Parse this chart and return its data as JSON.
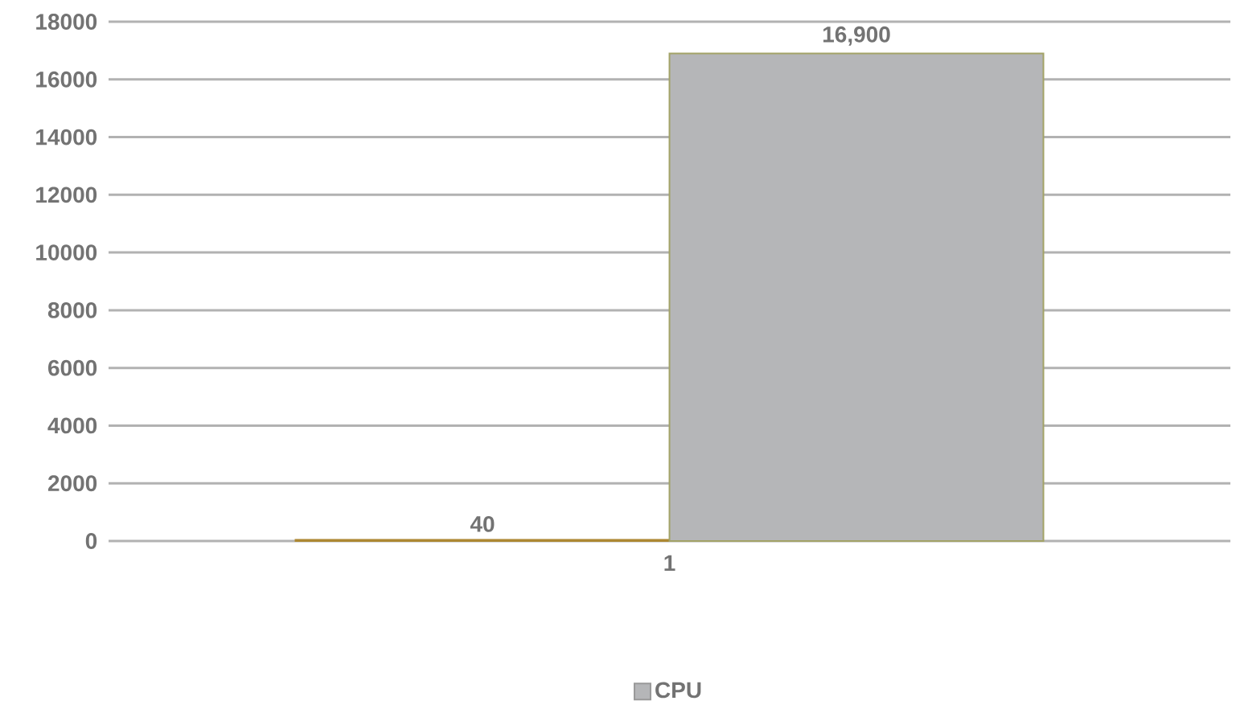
{
  "chart_data": {
    "type": "bar",
    "categories": [
      "1"
    ],
    "series": [
      {
        "color": "#c8865a",
        "values": [
          40
        ],
        "value_labels": [
          "40"
        ]
      },
      {
        "name": "CPU",
        "color": "#b5b6b8",
        "values": [
          16900
        ],
        "value_labels": [
          "16,900"
        ]
      }
    ],
    "ylim": [
      0,
      18000
    ],
    "yticks": [
      0,
      2000,
      4000,
      6000,
      8000,
      10000,
      12000,
      14000,
      16000,
      18000
    ],
    "grid": "y",
    "legend": "bottom"
  }
}
